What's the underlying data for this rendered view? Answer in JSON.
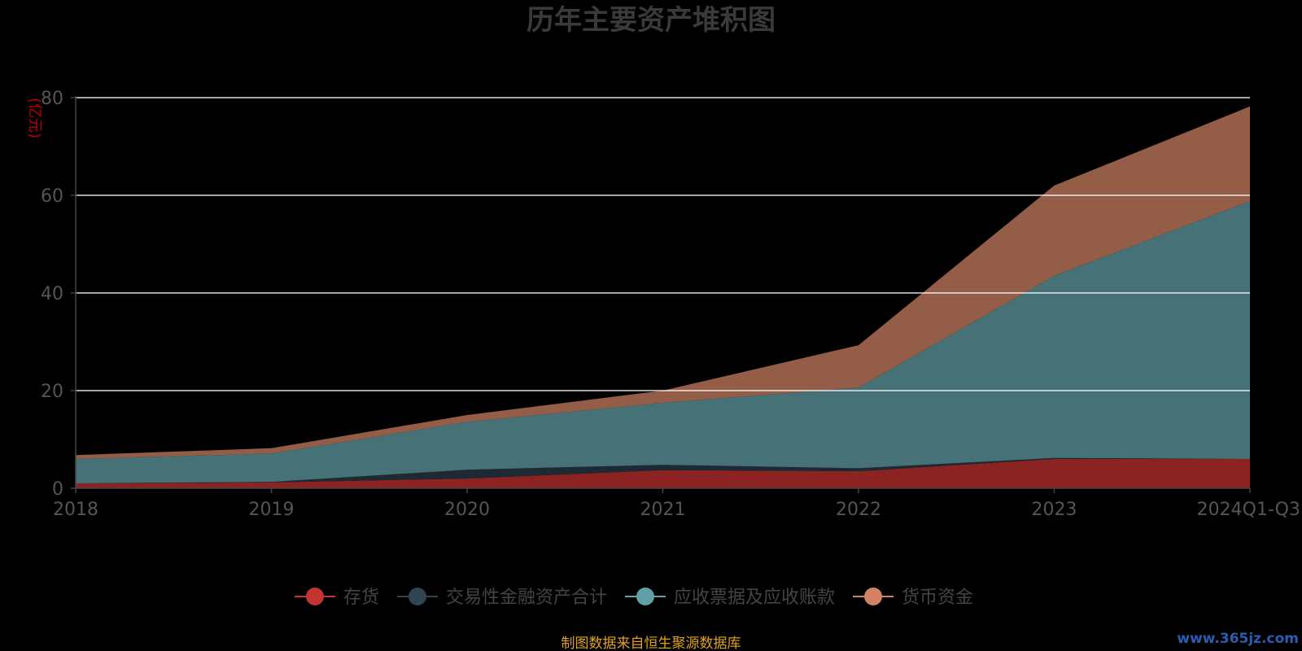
{
  "chart_data": {
    "type": "area",
    "stacked": true,
    "title": "历年主要资产堆积图",
    "unit_label": "(亿元)",
    "categories": [
      "2018",
      "2019",
      "2020",
      "2021",
      "2022",
      "2023",
      "2024Q1-Q3"
    ],
    "ylim": [
      0,
      80
    ],
    "yticks": [
      0,
      20,
      40,
      60,
      80
    ],
    "grid": true,
    "legend_position": "bottom",
    "series": [
      {
        "name": "存货",
        "color": "#8b2323",
        "legend_color": "#c23531",
        "values": [
          1.0,
          1.2,
          2.0,
          3.7,
          3.5,
          6.0,
          6.0
        ]
      },
      {
        "name": "交易性金融资产合计",
        "color": "#1e2a33",
        "legend_color": "#2f4554",
        "values": [
          0.0,
          0.1,
          1.8,
          1.1,
          0.6,
          0.2,
          0.0
        ]
      },
      {
        "name": "应收票据及应收账款",
        "color": "#467176",
        "legend_color": "#61a0a8",
        "values": [
          5.0,
          5.8,
          9.8,
          12.7,
          16.5,
          37.3,
          52.8
        ]
      },
      {
        "name": "货币资金",
        "color": "#935d48",
        "legend_color": "#d48265",
        "values": [
          0.8,
          1.1,
          1.4,
          2.5,
          8.7,
          18.5,
          19.4
        ]
      }
    ]
  },
  "footer": {
    "source": "制图数据来自恒生聚源数据库",
    "watermark": "www.365jz.com"
  }
}
